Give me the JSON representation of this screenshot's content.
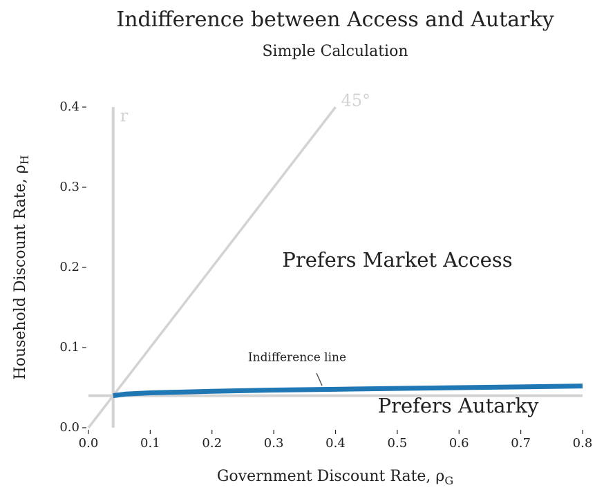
{
  "chart_data": {
    "type": "line",
    "title": "Indifference between Access and Autarky",
    "subtitle": "Simple Calculation",
    "xlabel": {
      "text": "Government Discount Rate, ρ",
      "subscript": "G"
    },
    "ylabel": {
      "text": "Household Discount Rate, ρ",
      "subscript": "H"
    },
    "x": [
      0.04,
      0.06,
      0.1,
      0.2,
      0.3,
      0.4,
      0.5,
      0.6,
      0.7,
      0.8
    ],
    "series": [
      {
        "name": "Indifference line",
        "color": "#1f77b4",
        "values": [
          0.04,
          0.042,
          0.0435,
          0.0455,
          0.047,
          0.048,
          0.049,
          0.05,
          0.051,
          0.052
        ]
      }
    ],
    "reference_lines": {
      "color": "#d3d3d3",
      "r": 0.04,
      "r_label": "r",
      "diagonal_label": "45°"
    },
    "annotations": [
      "Prefers Market Access",
      "Prefers Autarky"
    ],
    "xlim": [
      0,
      0.8
    ],
    "ylim": [
      0,
      0.4
    ],
    "xticks": [
      {
        "value": 0,
        "label": "0.0"
      },
      0.1,
      0.2,
      0.3,
      0.4,
      0.5,
      0.6,
      0.7,
      0.8
    ],
    "yticks": [
      {
        "value": 0,
        "label": "0.0"
      },
      0.1,
      0.2,
      0.3,
      0.4
    ]
  }
}
